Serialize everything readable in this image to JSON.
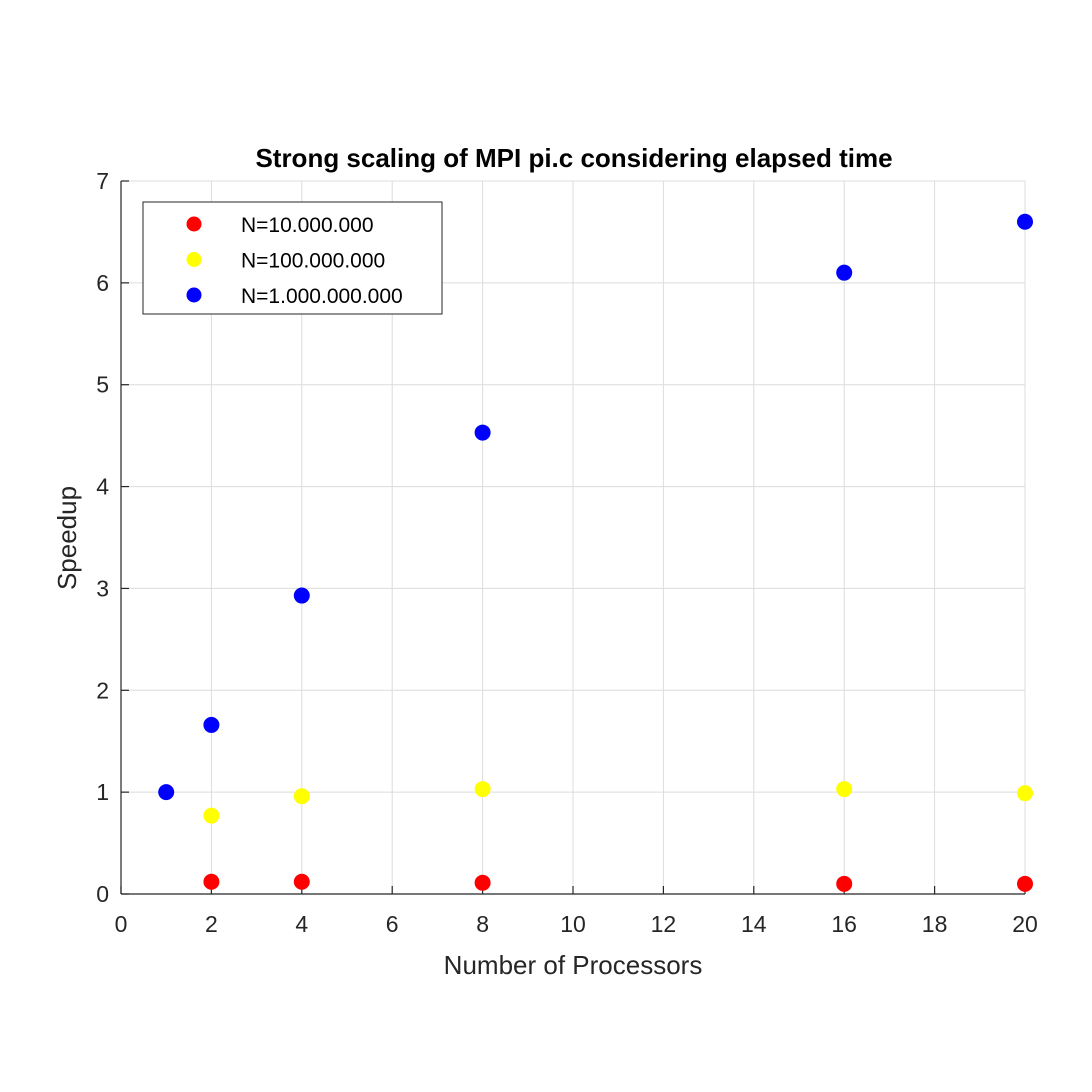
{
  "chart_data": {
    "type": "scatter",
    "title": "Strong scaling of MPI pi.c considering elapsed time",
    "xlabel": "Number of Processors",
    "ylabel": "Speedup",
    "xlim": [
      0,
      20
    ],
    "ylim": [
      0,
      7
    ],
    "xticks": [
      0,
      2,
      4,
      6,
      8,
      10,
      12,
      14,
      16,
      18,
      20
    ],
    "yticks": [
      0,
      1,
      2,
      3,
      4,
      5,
      6,
      7
    ],
    "grid": true,
    "legend_position": "top-left",
    "series": [
      {
        "name": "N=10.000.000",
        "color": "#ff0000",
        "x": [
          2,
          4,
          8,
          16,
          20
        ],
        "y": [
          0.12,
          0.12,
          0.11,
          0.1,
          0.1
        ]
      },
      {
        "name": "N=100.000.000",
        "color": "#ffff00",
        "x": [
          2,
          4,
          8,
          16,
          20
        ],
        "y": [
          0.77,
          0.96,
          1.03,
          1.03,
          0.99
        ]
      },
      {
        "name": "N=1.000.000.000",
        "color": "#0000ff",
        "x": [
          1,
          2,
          4,
          8,
          16,
          20
        ],
        "y": [
          1.0,
          1.66,
          2.93,
          4.53,
          6.1,
          6.6
        ]
      }
    ]
  }
}
